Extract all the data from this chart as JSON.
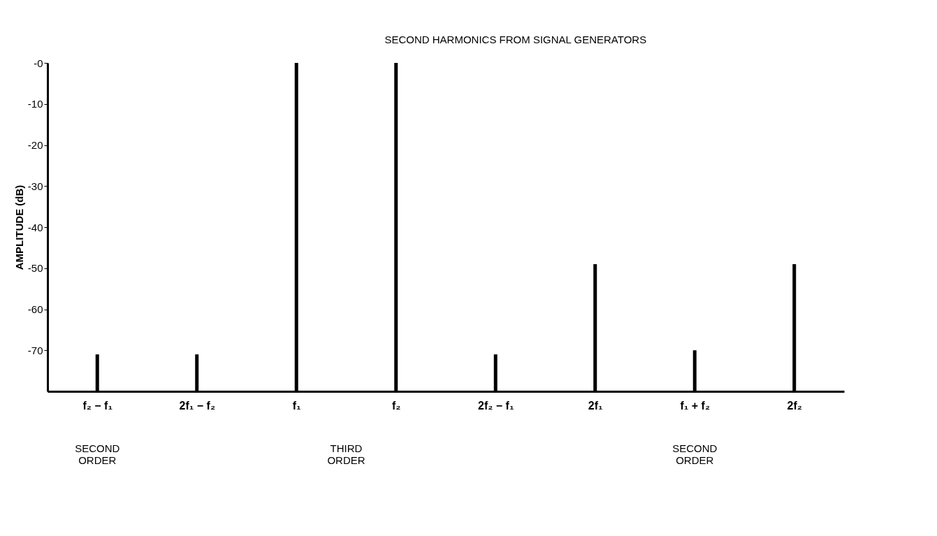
{
  "chart_data": {
    "type": "bar",
    "ylabel": "AMPLITUDE (dB)",
    "categories": [
      "f₂ − f₁",
      "2f₁ − f₂",
      "f₁",
      "f₂",
      "2f₂ − f₁",
      "2f₁",
      "f₁ + f₂",
      "2f₂"
    ],
    "base": [
      -80,
      -80,
      -80,
      -80,
      -80,
      -80,
      -80,
      -80
    ],
    "values": [
      9,
      9,
      80,
      80,
      9,
      31,
      10,
      31
    ],
    "color": "#000000",
    "ylim": [
      -80,
      0
    ],
    "yticks": [
      {
        "value": 0,
        "label": "-0"
      },
      -10,
      -20,
      -30,
      -40,
      -50,
      -60,
      -70
    ],
    "grid": false,
    "annotations": [
      "SECOND ORDER",
      "THIRD ORDER",
      "SECOND ORDER",
      "SECOND HARMONICS FROM SIGNAL GENERATORS"
    ]
  }
}
